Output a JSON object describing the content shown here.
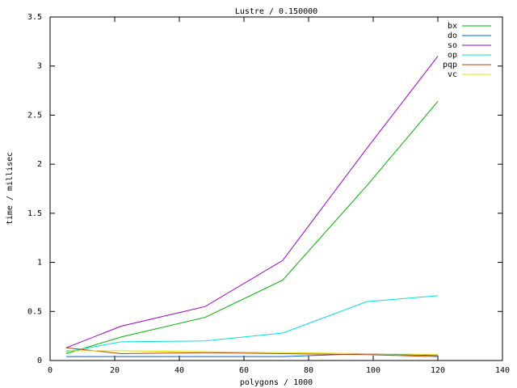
{
  "chart_data": {
    "type": "line",
    "title": "Lustre / 0.150000",
    "x_label": "polygons / 1000",
    "y_label": "time / millisec",
    "x": [
      5,
      22,
      48,
      72,
      98,
      120
    ],
    "series": [
      {
        "name": "bx",
        "color": "#00b000",
        "values": [
          0.07,
          0.24,
          0.44,
          0.82,
          1.78,
          2.64
        ]
      },
      {
        "name": "do",
        "color": "#0060d0",
        "values": [
          0.04,
          0.04,
          0.04,
          0.04,
          0.07,
          0.05
        ]
      },
      {
        "name": "so",
        "color": "#a000d0",
        "values": [
          0.13,
          0.35,
          0.55,
          1.02,
          2.16,
          3.1
        ]
      },
      {
        "name": "op",
        "color": "#00e0e0",
        "values": [
          0.09,
          0.19,
          0.2,
          0.28,
          0.6,
          0.66
        ]
      },
      {
        "name": "pqp",
        "color": "#c04000",
        "values": [
          0.13,
          0.07,
          0.08,
          0.07,
          0.06,
          0.04
        ]
      },
      {
        "name": "vc",
        "color": "#e0e000",
        "values": [
          0.1,
          0.1,
          0.09,
          0.08,
          0.07,
          0.06
        ]
      }
    ],
    "xlim": [
      0,
      140
    ],
    "xticks": [
      0,
      20,
      40,
      60,
      80,
      100,
      120,
      140
    ],
    "ylim": [
      0,
      3.5
    ],
    "yticks": [
      0,
      0.5,
      1,
      1.5,
      2,
      2.5,
      3,
      3.5
    ],
    "grid": false,
    "legend": "top-right"
  }
}
